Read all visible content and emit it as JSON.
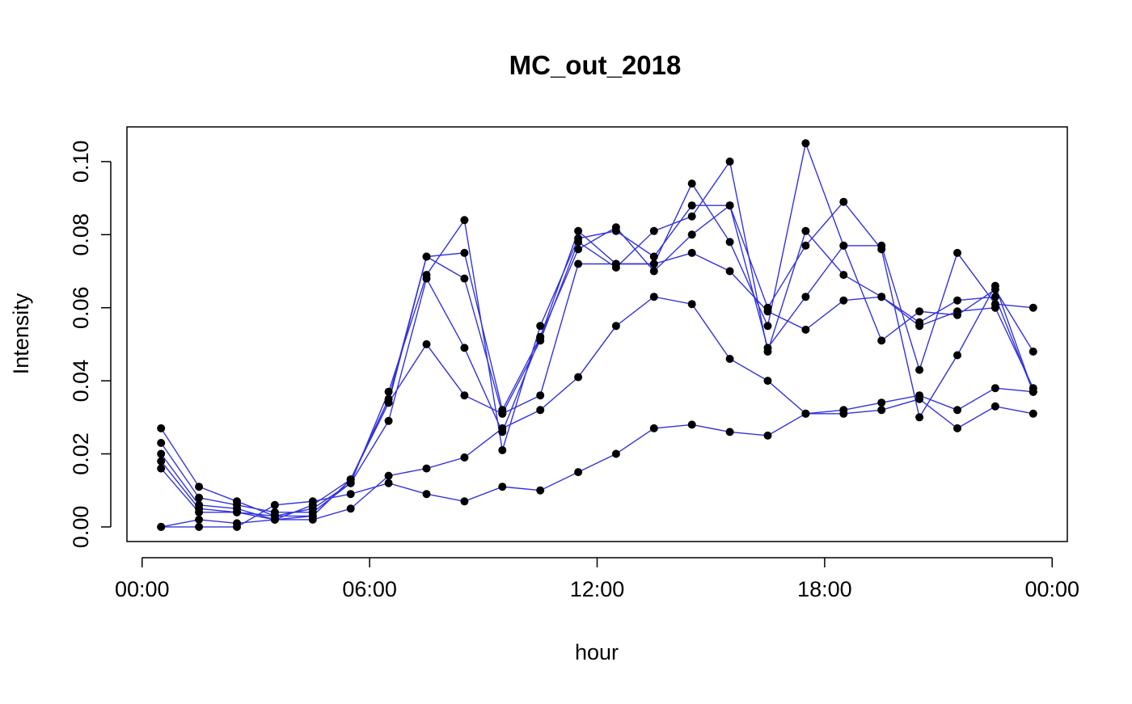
{
  "chart_data": {
    "type": "line",
    "title": "MC_out_2018",
    "xlabel": "hour",
    "ylabel": "Intensity",
    "x_ticks": [
      "00:00",
      "06:00",
      "12:00",
      "18:00",
      "00:00"
    ],
    "x_tick_hours": [
      0,
      6,
      12,
      18,
      24
    ],
    "y_ticks": [
      "0.00",
      "0.02",
      "0.04",
      "0.06",
      "0.08",
      "0.10"
    ],
    "y_tick_values": [
      0.0,
      0.02,
      0.04,
      0.06,
      0.08,
      0.1
    ],
    "xlim": [
      -0.4,
      24.4
    ],
    "ylim": [
      -0.004,
      0.1095
    ],
    "line_color": "#3333dd",
    "point_color": "#000000",
    "grid": false,
    "series": [
      {
        "x": [
          0.5,
          1.5,
          2.5,
          3.5,
          4.5,
          5.5,
          6.5,
          7.5,
          8.5,
          9.5,
          10.5,
          11.5,
          12.5,
          13.5,
          14.5,
          15.5,
          16.5,
          17.5,
          18.5,
          19.5,
          20.5,
          21.5,
          22.5,
          23.5
        ],
        "values": [
          0.027,
          0.011,
          0.007,
          0.003,
          0.003,
          0.013,
          0.034,
          0.074,
          0.075,
          0.032,
          0.052,
          0.081,
          0.072,
          0.072,
          0.094,
          0.078,
          0.055,
          0.105,
          0.077,
          0.077,
          0.043,
          0.075,
          0.061,
          0.06
        ]
      },
      {
        "x": [
          0.5,
          1.5,
          2.5,
          3.5,
          4.5,
          5.5,
          6.5,
          7.5,
          8.5,
          9.5,
          10.5,
          11.5,
          12.5,
          13.5,
          14.5,
          15.5,
          16.5,
          17.5,
          18.5,
          19.5,
          20.5,
          21.5,
          22.5,
          23.5
        ],
        "values": [
          0.023,
          0.008,
          0.006,
          0.004,
          0.004,
          0.012,
          0.037,
          0.069,
          0.084,
          0.021,
          0.055,
          0.079,
          0.081,
          0.074,
          0.088,
          0.088,
          0.06,
          0.077,
          0.089,
          0.076,
          0.03,
          0.047,
          0.066,
          0.037
        ]
      },
      {
        "x": [
          0.5,
          1.5,
          2.5,
          3.5,
          4.5,
          5.5,
          6.5,
          7.5,
          8.5,
          9.5,
          10.5,
          11.5,
          12.5,
          13.5,
          14.5,
          15.5,
          16.5,
          17.5,
          18.5,
          19.5,
          20.5,
          21.5,
          22.5,
          23.5
        ],
        "values": [
          0.02,
          0.006,
          0.005,
          0.002,
          0.006,
          0.013,
          0.035,
          0.074,
          0.068,
          0.031,
          0.051,
          0.078,
          0.071,
          0.081,
          0.085,
          0.1,
          0.048,
          0.081,
          0.069,
          0.063,
          0.055,
          0.059,
          0.06,
          0.038
        ]
      },
      {
        "x": [
          0.5,
          1.5,
          2.5,
          3.5,
          4.5,
          5.5,
          6.5,
          7.5,
          8.5,
          9.5,
          10.5,
          11.5,
          12.5,
          13.5,
          14.5,
          15.5,
          16.5,
          17.5,
          18.5,
          19.5,
          20.5,
          21.5,
          22.5,
          23.5
        ],
        "values": [
          0.018,
          0.005,
          0.004,
          0.003,
          0.005,
          0.012,
          0.029,
          0.068,
          0.049,
          0.026,
          0.052,
          0.076,
          0.082,
          0.07,
          0.08,
          0.088,
          0.049,
          0.063,
          0.077,
          0.051,
          0.059,
          0.058,
          0.065,
          0.048
        ]
      },
      {
        "x": [
          0.5,
          1.5,
          2.5,
          3.5,
          4.5,
          5.5,
          6.5,
          7.5,
          8.5,
          9.5,
          10.5,
          11.5,
          12.5,
          13.5,
          14.5,
          15.5,
          16.5,
          17.5,
          18.5,
          19.5,
          20.5,
          21.5,
          22.5,
          23.5
        ],
        "values": [
          0.016,
          0.004,
          0.004,
          0.002,
          0.003,
          0.013,
          0.034,
          0.05,
          0.036,
          0.031,
          0.036,
          0.072,
          0.072,
          0.072,
          0.075,
          0.07,
          0.059,
          0.054,
          0.062,
          0.063,
          0.056,
          0.062,
          0.063,
          0.037
        ]
      },
      {
        "x": [
          0.5,
          1.5,
          2.5,
          3.5,
          4.5,
          5.5,
          6.5,
          7.5,
          8.5,
          9.5,
          10.5,
          11.5,
          12.5,
          13.5,
          14.5,
          15.5,
          16.5,
          17.5,
          18.5,
          19.5,
          20.5,
          21.5,
          22.5,
          23.5
        ],
        "values": [
          0.0,
          0.002,
          0.001,
          0.002,
          0.002,
          0.005,
          0.014,
          0.016,
          0.019,
          0.027,
          0.032,
          0.041,
          0.055,
          0.063,
          0.061,
          0.046,
          0.04,
          0.031,
          0.032,
          0.034,
          0.036,
          0.032,
          0.038,
          0.037
        ]
      },
      {
        "x": [
          0.5,
          1.5,
          2.5,
          3.5,
          4.5,
          5.5,
          6.5,
          7.5,
          8.5,
          9.5,
          10.5,
          11.5,
          12.5,
          13.5,
          14.5,
          15.5,
          16.5,
          17.5,
          18.5,
          19.5,
          20.5,
          21.5,
          22.5,
          23.5
        ],
        "values": [
          0.0,
          0.0,
          0.0,
          0.006,
          0.007,
          0.009,
          0.012,
          0.009,
          0.007,
          0.011,
          0.01,
          0.015,
          0.02,
          0.027,
          0.028,
          0.026,
          0.025,
          0.031,
          0.031,
          0.032,
          0.035,
          0.027,
          0.033,
          0.031
        ]
      }
    ]
  }
}
